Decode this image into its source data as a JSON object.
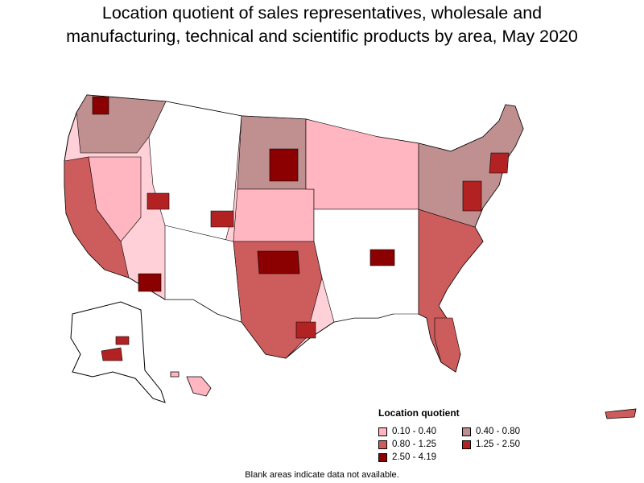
{
  "title_lines": [
    "Location quotient of sales representatives, wholesale and",
    "manufacturing, technical and scientific products by area, May 2020"
  ],
  "legend": {
    "title": "Location quotient",
    "items": [
      {
        "label": "0.10 - 0.40",
        "color": "#ffb6c1"
      },
      {
        "label": "0.40 - 0.80",
        "color": "#c08f8f"
      },
      {
        "label": "0.80 - 1.25",
        "color": "#cd5c5c"
      },
      {
        "label": "1.25 - 2.50",
        "color": "#b22222"
      },
      {
        "label": "2.50 - 4.19",
        "color": "#8b0000"
      }
    ]
  },
  "note": "Blank areas indicate data not available.",
  "colors": {
    "no_data": "#ffffff",
    "border": "#000000"
  }
}
